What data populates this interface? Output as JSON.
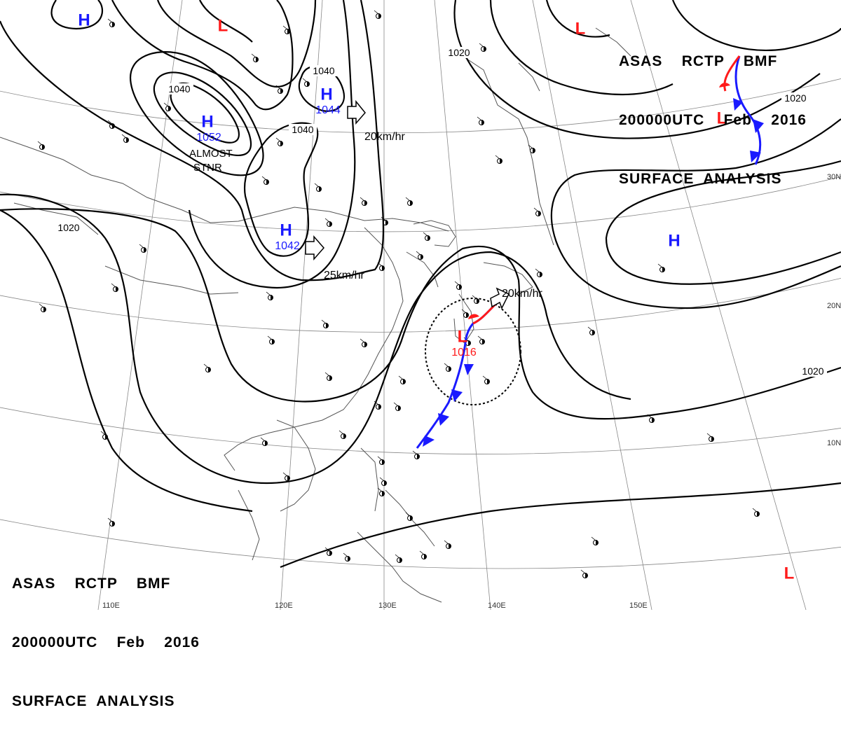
{
  "header": {
    "line1": [
      "ASAS",
      "RCTP",
      "BMF"
    ],
    "line2": [
      "200000UTC",
      "Feb",
      "2016"
    ],
    "line3": "SURFACE  ANALYSIS"
  },
  "colors": {
    "high": "#1a1aff",
    "low": "#ff1a1a",
    "isobar": "#000000",
    "grid": "#777777",
    "coast": "#555555"
  },
  "pressure_centers": [
    {
      "kind": "H",
      "value": ""
    },
    {
      "kind": "L",
      "value": ""
    },
    {
      "kind": "H",
      "value": "1052"
    },
    {
      "kind": "H",
      "value": "1044"
    },
    {
      "kind": "H",
      "value": "1042"
    },
    {
      "kind": "L",
      "value": ""
    },
    {
      "kind": "L",
      "value": ""
    },
    {
      "kind": "H",
      "value": ""
    },
    {
      "kind": "L",
      "value": "1016"
    },
    {
      "kind": "L",
      "value": ""
    }
  ],
  "isobar_labels": [
    "1040",
    "1040",
    "1040",
    "1020",
    "1020",
    "1020",
    "1020"
  ],
  "movement_labels": [
    "20km/hr",
    "25km/hr",
    "20km/hr"
  ],
  "stationary_note": [
    "ALMOST",
    "STNR"
  ],
  "lat_labels": [
    "30N",
    "20N",
    "10N"
  ],
  "lon_labels": [
    "110E",
    "120E",
    "130E",
    "140E",
    "150E"
  ]
}
